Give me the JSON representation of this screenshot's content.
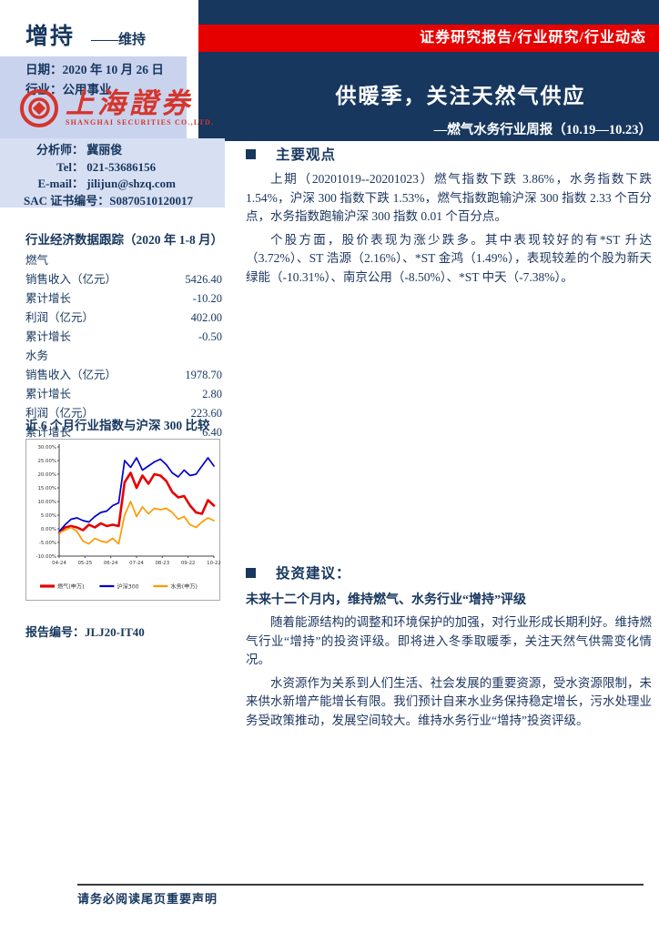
{
  "rating": {
    "value": "增持",
    "sub": "——维持"
  },
  "meta": {
    "date_label": "日期：",
    "date_value": "2020 年 10 月 26 日",
    "industry_label": "行业：",
    "industry_value": "公用事业"
  },
  "logo": {
    "cn": "上海證券",
    "en": "SHANGHAI SECURITIES CO.,LTD."
  },
  "header": {
    "banner": "证券研究报告/行业研究/行业动态",
    "title": "供暖季，关注天然气供应",
    "subtitle": "—燃气水务行业周报（10.19—10.23）"
  },
  "analyst": {
    "analyst_label": "分析师：",
    "name": "冀丽俊",
    "tel_label": "Tel：",
    "tel": "021-53686156",
    "email_label": "E-mail：",
    "email": "jilijun@shzq.com",
    "sac_label": "SAC 证书编号：",
    "sac": "S0870510120017"
  },
  "tracking": {
    "title": "行业经济数据跟踪（2020 年 1-8 月）",
    "rows": [
      {
        "label": "燃气",
        "value": ""
      },
      {
        "label": "销售收入（亿元）",
        "value": "5426.40"
      },
      {
        "label": "累计增长",
        "value": "-10.20"
      },
      {
        "label": "利润（亿元）",
        "value": "402.00"
      },
      {
        "label": "累计增长",
        "value": "-0.50"
      },
      {
        "label": "水务",
        "value": ""
      },
      {
        "label": "销售收入（亿元）",
        "value": "1978.70"
      },
      {
        "label": "累计增长",
        "value": "2.80"
      },
      {
        "label": "利润（亿元）",
        "value": "223.60"
      },
      {
        "label": "累计增长",
        "value": "6.40"
      }
    ]
  },
  "chart_data": {
    "type": "line",
    "title": "近 6 个月行业指数与沪深 300 比较",
    "ylim": [
      -10,
      30
    ],
    "y_ticks": [
      "30.00%",
      "25.00%",
      "20.00%",
      "15.00%",
      "10.00%",
      "5.00%",
      "0.00%",
      "-5.00%",
      "-10.00%"
    ],
    "x_ticks": [
      "04-24",
      "05-25",
      "06-24",
      "07-24",
      "08-23",
      "09-22",
      "10-22"
    ],
    "legend_position": "bottom",
    "series": [
      {
        "name": "燃气(申万)",
        "color": "#e60000",
        "width": 2.6,
        "values": [
          -1.5,
          0.5,
          1,
          0.5,
          -0.5,
          1.5,
          0.5,
          2,
          1,
          1.5,
          1,
          17,
          20.5,
          15,
          19.5,
          16.5,
          20,
          19.5,
          17.5,
          13.5,
          11.5,
          12,
          8.5,
          6,
          5.5,
          10.5,
          8.5
        ]
      },
      {
        "name": "沪深300",
        "color": "#0000cc",
        "width": 1.7,
        "values": [
          -1,
          1.5,
          3.5,
          4,
          3,
          2.5,
          4.5,
          6,
          6.5,
          8.5,
          9.5,
          25,
          22.5,
          26,
          21.5,
          23,
          24.5,
          25.5,
          23.5,
          20.5,
          19,
          21.5,
          19.5,
          20,
          23,
          26,
          23
        ]
      },
      {
        "name": "水务(申万)",
        "color": "#ff9900",
        "width": 1.7,
        "values": [
          -1.5,
          -0.5,
          0.5,
          -1,
          -4.5,
          -5.5,
          -3.5,
          -4.5,
          -5,
          -3.5,
          -5.5,
          5,
          10,
          4.5,
          8,
          5.5,
          7.5,
          7,
          7.5,
          6,
          3.5,
          4.5,
          1.5,
          0.5,
          2.5,
          4,
          3
        ]
      }
    ]
  },
  "report_no": {
    "label": "报告编号：",
    "value": "JLJ20-IT40"
  },
  "sections": {
    "s1": {
      "title": "主要观点",
      "p1": "上期（20201019--20201023）燃气指数下跌 3.86%，水务指数下跌 1.54%，沪深 300 指数下跌 1.53%，燃气指数跑输沪深 300 指数 2.33 个百分点，水务指数跑输沪深 300 指数 0.01 个百分点。",
      "p2": "个股方面，股价表现为涨少跌多。其中表现较好的有*ST 升达（3.72%）、ST 浩源（2.16%）、*ST 金鸿（1.49%），表现较差的个股为新天绿能（-10.31%）、南京公用（-8.50%）、*ST 中天（-7.38%）。"
    },
    "s2": {
      "title": "投资建议：",
      "bold_line": "未来十二个月内，维持燃气、水务行业“增持”评级",
      "p1": "随着能源结构的调整和环境保护的加强，对行业形成长期利好。维持燃气行业“增持”的投资评级。即将进入冬季取暖季，关注天然气供需变化情况。",
      "p2": "水资源作为关系到人们生活、社会发展的重要资源，受水资源限制，未来供水新增产能增长有限。我们预计自来水业务保持稳定增长，污水处理业务受政策推动，发展空间较大。维持水务行业“增持”投资评级。"
    }
  },
  "footer": {
    "disclaimer": "请务必阅读尾页重要声明"
  },
  "colors": {
    "navy": "#17375e",
    "red": "#e60000",
    "lavender": "#c9d3ee",
    "logo_red": "#d6352b"
  }
}
